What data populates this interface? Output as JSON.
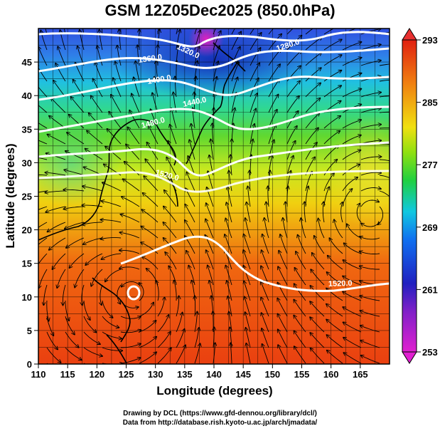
{
  "title": "GSM 12Z05Dec2025 (850.0hPa)",
  "axes": {
    "xlabel": "Longitude (degrees)",
    "ylabel": "Latitude  (degrees)",
    "xticks": [
      "110",
      "115",
      "120",
      "125",
      "130",
      "135",
      "140",
      "145",
      "150",
      "155",
      "160",
      "165"
    ],
    "yticks": [
      "0",
      "5",
      "10",
      "15",
      "20",
      "25",
      "30",
      "35",
      "40",
      "45"
    ],
    "xlim": [
      110,
      170
    ],
    "ylim": [
      0,
      50
    ]
  },
  "colorbar": {
    "ticks": [
      "253",
      "261",
      "269",
      "277",
      "285",
      "293"
    ],
    "range": [
      253,
      293
    ],
    "colors": [
      "#e020d0",
      "#4010c0",
      "#1050f0",
      "#10c0e0",
      "#20d060",
      "#a0e010",
      "#f0e010",
      "#f08010",
      "#e02010"
    ]
  },
  "contour_labels": [
    "1320.0",
    "1280.0",
    "1360.0",
    "1400.0",
    "1440.0",
    "1480.0",
    "1520.0",
    "1520.0"
  ],
  "chart_data": {
    "type": "heatmap",
    "title": "GSM 12Z05Dec2025 (850.0hPa)",
    "xlabel": "Longitude (degrees)",
    "ylabel": "Latitude  (degrees)",
    "xlim": [
      110,
      170
    ],
    "ylim": [
      0,
      50
    ],
    "colorbar_range": [
      253,
      293
    ],
    "grid": true,
    "contours_geopotential_height": [
      1280,
      1320,
      1360,
      1400,
      1440,
      1480,
      1520
    ]
  },
  "credit": {
    "line1": "Drawing by DCL (https://www.gfd-dennou.org/library/dcl/)",
    "line2": "Data from http://database.rish.kyoto-u.ac.jp/arch/jmadata/"
  }
}
